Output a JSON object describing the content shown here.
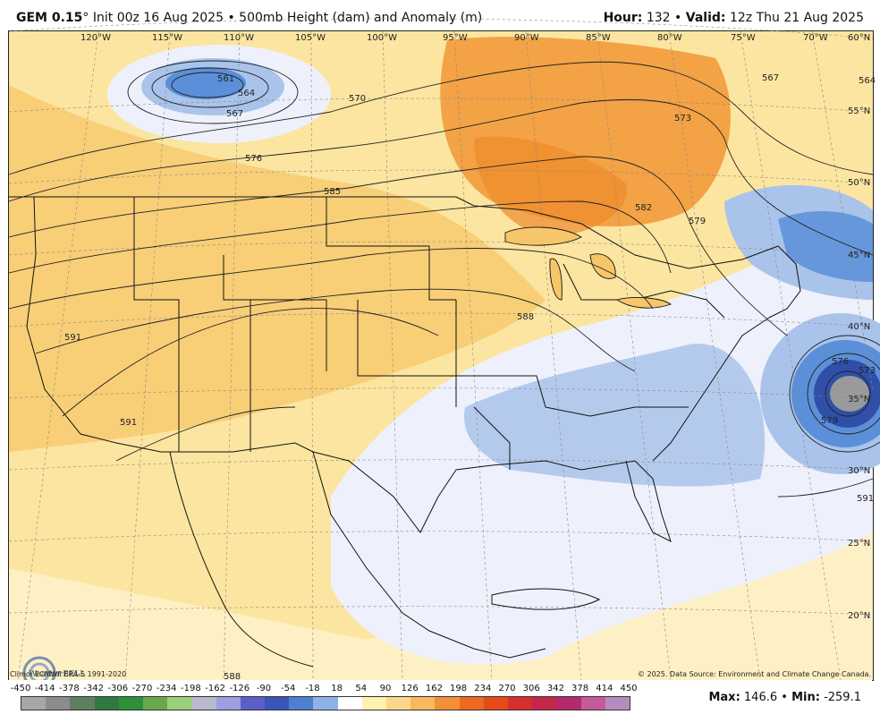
{
  "header": {
    "model": "GEM 0.15",
    "degree": "°",
    "init": "Init 00z 16 Aug 2025",
    "bullet": "•",
    "product": "500mb Height (dam) and Anomaly (m)",
    "hour_label": "Hour:",
    "hour_value": "132",
    "valid_label": "Valid:",
    "valid_value": "12z Thu 21 Aug 2025"
  },
  "map": {
    "longitudes": [
      "120°W",
      "115°W",
      "110°W",
      "105°W",
      "100°W",
      "95°W",
      "90°W",
      "85°W",
      "80°W",
      "75°W",
      "70°W"
    ],
    "latitudes": [
      "60°N",
      "55°N",
      "50°N",
      "45°N",
      "40°N",
      "35°N",
      "30°N",
      "25°N",
      "20°N"
    ],
    "contour_labels": [
      "561",
      "564",
      "567",
      "570",
      "576",
      "585",
      "588",
      "591",
      "591",
      "582",
      "579",
      "573",
      "567",
      "564",
      "576",
      "573",
      "579",
      "591",
      "588"
    ],
    "climo": "Climo: ECMWF ERA-5 1991-2020",
    "copyright": "© 2025. Data Source: Environment and Climate Change Canada.",
    "logo_text": "WeatherBELL",
    "colors": {
      "warm_light": "#fbe5a0",
      "warm_mid": "#f7c66a",
      "warm_strong": "#f29a3b",
      "cool_light": "#eef1fb",
      "cool_mid": "#a9c3ea",
      "cool_strong": "#5b8fd9",
      "cool_deep": "#2f4fa8"
    }
  },
  "legend": {
    "labels": [
      "-450",
      "-414",
      "-378",
      "-342",
      "-306",
      "-270",
      "-234",
      "-198",
      "-162",
      "-126",
      "-90",
      "-54",
      "-18",
      "18",
      "54",
      "90",
      "126",
      "162",
      "198",
      "234",
      "270",
      "306",
      "342",
      "378",
      "414",
      "450"
    ],
    "colors": [
      "#a7a7a7",
      "#8c8c8c",
      "#5f7f5f",
      "#2e7a3e",
      "#2f8f3a",
      "#6aa84f",
      "#9ccf7a",
      "#b8b8cf",
      "#9e9ee0",
      "#5c5fc7",
      "#3b56b8",
      "#4f7fd0",
      "#8fb2e6",
      "#ffffff",
      "#fff2b0",
      "#fbd78a",
      "#f7b860",
      "#f2903a",
      "#ec6a22",
      "#e64a19",
      "#d62f2f",
      "#c2284a",
      "#b52a6b",
      "#c35a9a",
      "#b48cc0"
    ],
    "max_label": "Max:",
    "max_value": "146.6",
    "min_label": "Min:",
    "min_value": "-259.1"
  }
}
